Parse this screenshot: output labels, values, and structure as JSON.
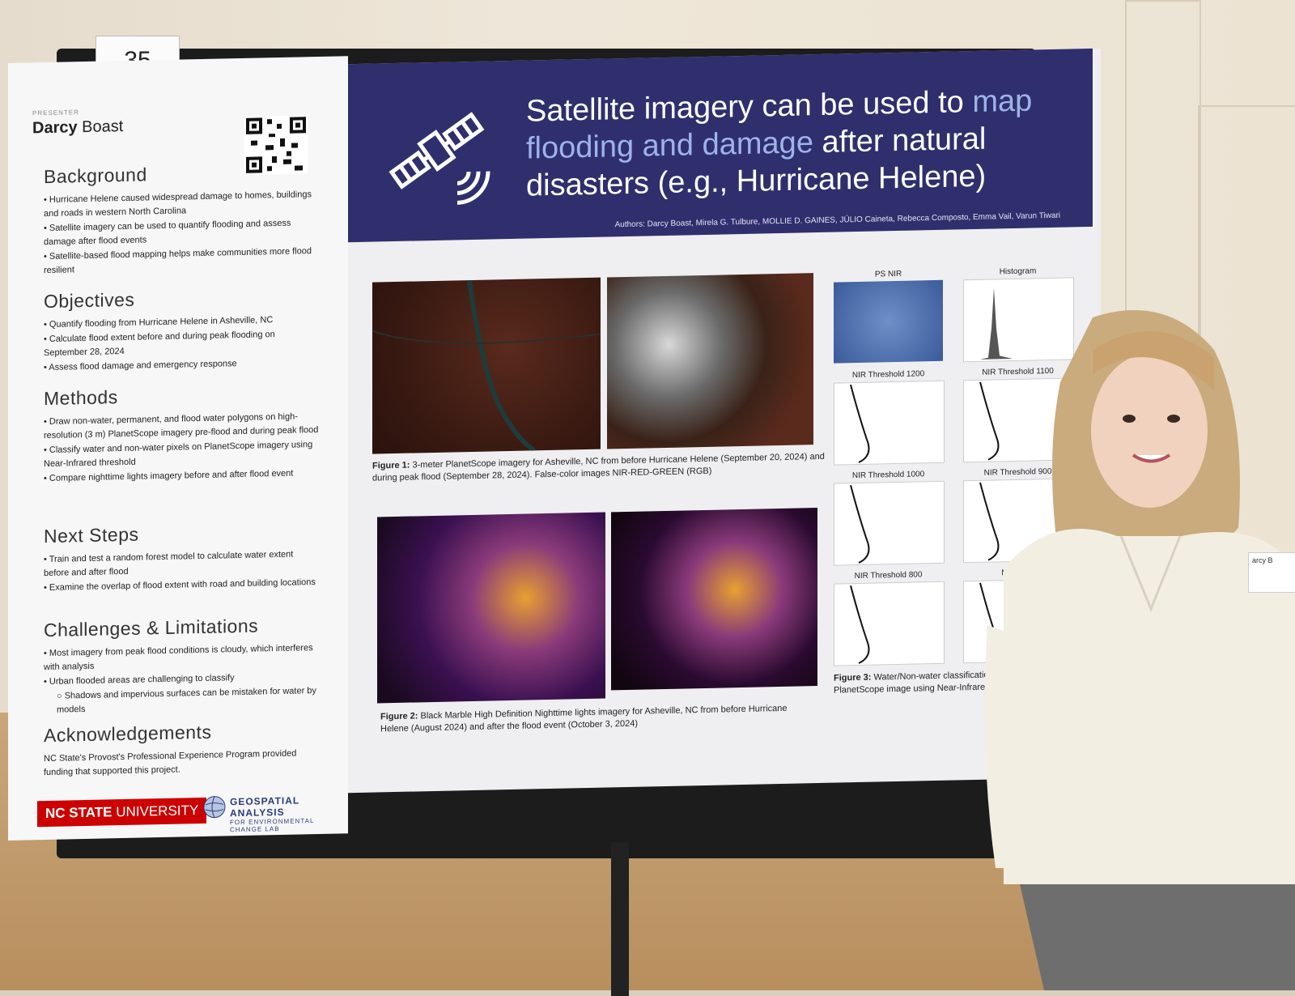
{
  "scene": {
    "card_number": "35"
  },
  "left_column": {
    "presenter_label": "PRESENTER",
    "presenter_first": "Darcy",
    "presenter_last": "Boast",
    "sections": [
      {
        "heading": "Background",
        "bullets": [
          "• Hurricane Helene caused widespread damage to homes, buildings and roads in western North Carolina",
          "• Satellite imagery can be used to quantify flooding and assess damage after flood events",
          "• Satellite-based flood mapping helps make communities more flood resilient"
        ]
      },
      {
        "heading": "Objectives",
        "bullets": [
          "• Quantify flooding from Hurricane Helene in Asheville, NC",
          "• Calculate flood extent before and during peak flooding on September 28, 2024",
          "• Assess flood damage and emergency response"
        ]
      },
      {
        "heading": "Methods",
        "bullets": [
          "• Draw non-water, permanent, and flood water polygons on high-resolution (3 m) PlanetScope imagery pre-flood and during peak flood",
          "• Classify water and non-water pixels on PlanetScope imagery using Near-Infrared threshold",
          "• Compare nighttime lights imagery before and after flood event"
        ]
      },
      {
        "heading": "Next Steps",
        "bullets": [
          "• Train and test a random forest model to calculate water extent before and after flood",
          "• Examine the overlap of flood extent with road and building locations"
        ]
      },
      {
        "heading": "Challenges & Limitations",
        "bullets": [
          "• Most imagery from peak flood conditions is cloudy, which interferes with analysis",
          "• Urban flooded areas are challenging to classify",
          "○ Shadows and impervious surfaces can be mistaken for water by models"
        ]
      },
      {
        "heading": "Acknowledgements",
        "bullets": [
          "NC State's Provost's Professional Experience Program provided funding that supported this project."
        ]
      }
    ],
    "logos": {
      "ncsu_bold": "NC STATE",
      "ncsu_rest": "UNIVERSITY",
      "gal_line1": "GEOSPATIAL ANALYSIS",
      "gal_line2": "FOR ENVIRONMENTAL CHANGE LAB"
    }
  },
  "title_band": {
    "title_a": "Satellite imagery can be used to ",
    "title_hl": "map flooding and damage",
    "title_b": " after natural disasters (e.g., Hurricane Helene)",
    "authors": "Authors: Darcy Boast, Mirela G. Tulbure, MOLLIE D. GAINES, JÚLIO Caineta, Rebecca Composto, Emma Vail, Varun Tiwari"
  },
  "figures": {
    "fig1_label": "Figure 1:",
    "fig1_text": " 3-meter PlanetScope imagery for Asheville, NC from before Hurricane Helene (September 20, 2024) and during peak flood (September 28, 2024). False-color images NIR-RED-GREEN (RGB)",
    "fig2_label": "Figure 2:",
    "fig2_text": " Black Marble High Definition Nighttime lights imagery for Asheville, NC from before Hurricane Helene (August 2024) and after the flood event (October 3, 2024)",
    "fig3_label": "Figure 3:",
    "fig3_text": " Water/Non-water classification c PlanetScope image using Near-Infrared",
    "panels": [
      "PS NIR",
      "Histogram",
      "NIR Threshold 1200",
      "NIR Threshold 1100",
      "NIR Threshold 1000",
      "NIR Threshold 900",
      "NIR Threshold 800",
      "NIR Thre"
    ]
  },
  "badge": {
    "text": "arcy B"
  }
}
